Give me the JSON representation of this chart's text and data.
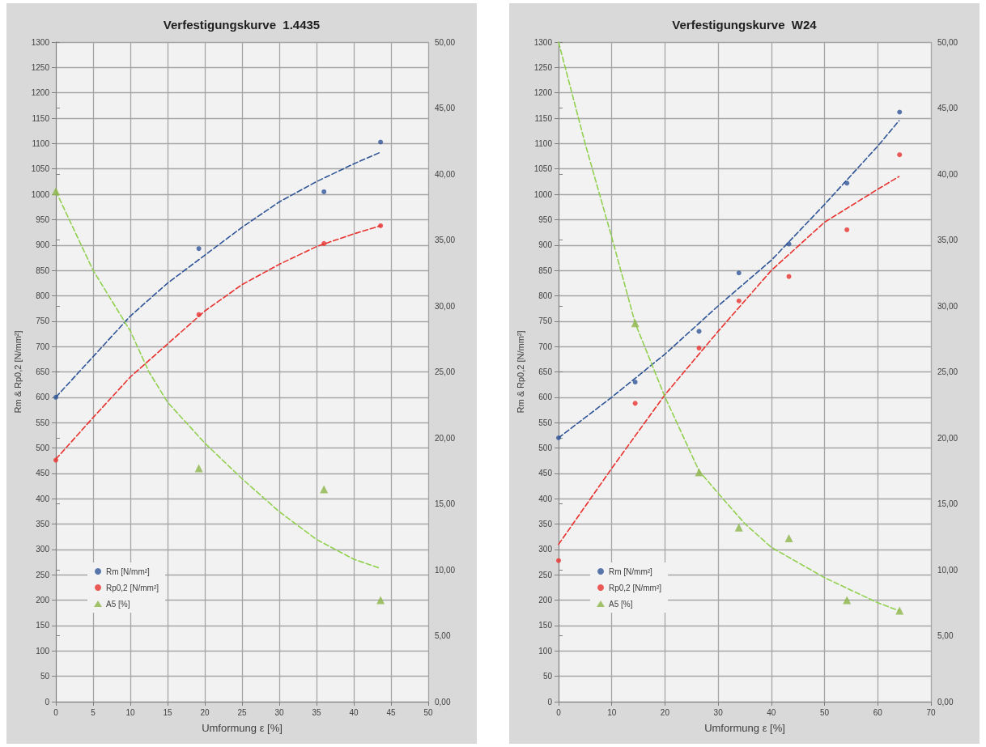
{
  "chart_data": [
    {
      "type": "scatter",
      "title": "Verfestigungskurve  1.4435",
      "xlabel": "Umformung ε [%]",
      "ylabel": "Rm & Rp0,2 [N/mm²]",
      "xlim": [
        0,
        50
      ],
      "xticks": [
        0,
        5,
        10,
        15,
        20,
        25,
        30,
        35,
        40,
        45,
        50
      ],
      "ylim": [
        0,
        1300
      ],
      "yticks": [
        0,
        50,
        100,
        150,
        200,
        250,
        300,
        350,
        400,
        450,
        500,
        550,
        600,
        650,
        700,
        750,
        800,
        850,
        900,
        950,
        1000,
        1050,
        1100,
        1150,
        1200,
        1250,
        1300
      ],
      "y2lim": [
        0,
        50
      ],
      "y2ticks": [
        {
          "value": 0,
          "label": "0,00"
        },
        {
          "value": 5,
          "label": "5,00"
        },
        {
          "value": 10,
          "label": "10,00"
        },
        {
          "value": 15,
          "label": "15,00"
        },
        {
          "value": 20,
          "label": "20,00"
        },
        {
          "value": 25,
          "label": "25,00"
        },
        {
          "value": 30,
          "label": "30,00"
        },
        {
          "value": 35,
          "label": "35,00"
        },
        {
          "value": 40,
          "label": "40,00"
        },
        {
          "value": 45,
          "label": "45,00"
        },
        {
          "value": 50,
          "label": "50,00"
        }
      ],
      "grid": true,
      "legend": "bottom left",
      "series": [
        {
          "type": "line",
          "color": "#2f5597",
          "line_style": "dashed",
          "marker": "none",
          "x": [
            0,
            5,
            10,
            15,
            20,
            25,
            30,
            35,
            40,
            43.6
          ],
          "values": [
            600,
            680,
            760,
            825,
            880,
            935,
            985,
            1025,
            1060,
            1083
          ]
        },
        {
          "type": "line",
          "color": "#e8322e",
          "line_style": "dashed",
          "marker": "none",
          "x": [
            0,
            5,
            10,
            15,
            20,
            25,
            30,
            35,
            40,
            43.6
          ],
          "values": [
            478,
            560,
            640,
            705,
            770,
            822,
            862,
            897,
            922,
            938
          ]
        },
        {
          "type": "line",
          "color": "#92d050",
          "line_style": "dashed",
          "marker": "none",
          "axis": "y2",
          "x": [
            0,
            5,
            10,
            12.5,
            15,
            20,
            25,
            30,
            35,
            40,
            43.6
          ],
          "values": [
            38.7,
            32.7,
            28.1,
            25,
            22.7,
            19.6,
            16.9,
            14.4,
            12.3,
            10.8,
            10.1
          ]
        },
        {
          "name": "Rm [N/mm²]",
          "color": "#2f5597",
          "marker": "circle",
          "x": [
            0,
            19.2,
            36,
            43.6
          ],
          "values": [
            600,
            893,
            1005,
            1103
          ]
        },
        {
          "name": "Rp0,2 [N/mm²]",
          "color": "#e8322e",
          "marker": "circle",
          "x": [
            0,
            19.2,
            36,
            43.6
          ],
          "values": [
            476,
            763,
            903,
            938
          ]
        },
        {
          "name": "A5 [%]",
          "color": "#8cb548",
          "marker": "triangle",
          "axis": "y2",
          "x": [
            0,
            19.2,
            36,
            43.6
          ],
          "values": [
            38.7,
            17.7,
            16.1,
            7.7
          ]
        }
      ]
    },
    {
      "type": "scatter",
      "title": "Verfestigungskurve  W24",
      "xlabel": "Umformung ε [%]",
      "ylabel": "Rm & Rp0,2 [N/mm²]",
      "xlim": [
        0,
        70
      ],
      "xticks": [
        0,
        10,
        20,
        30,
        40,
        50,
        60,
        70
      ],
      "ylim": [
        0,
        1300
      ],
      "yticks": [
        0,
        50,
        100,
        150,
        200,
        250,
        300,
        350,
        400,
        450,
        500,
        550,
        600,
        650,
        700,
        750,
        800,
        850,
        900,
        950,
        1000,
        1050,
        1100,
        1150,
        1200,
        1250,
        1300
      ],
      "y2lim": [
        0,
        50
      ],
      "y2ticks": [
        {
          "value": 0,
          "label": "0,00"
        },
        {
          "value": 5,
          "label": "5,00"
        },
        {
          "value": 10,
          "label": "10,00"
        },
        {
          "value": 15,
          "label": "15,00"
        },
        {
          "value": 20,
          "label": "20,00"
        },
        {
          "value": 25,
          "label": "25,00"
        },
        {
          "value": 30,
          "label": "30,00"
        },
        {
          "value": 35,
          "label": "35,00"
        },
        {
          "value": 40,
          "label": "40,00"
        },
        {
          "value": 45,
          "label": "45,00"
        },
        {
          "value": 50,
          "label": "50,00"
        }
      ],
      "grid": true,
      "legend": "bottom left",
      "series": [
        {
          "type": "line",
          "color": "#2f5597",
          "line_style": "dashed",
          "marker": "none",
          "x": [
            0,
            10,
            20,
            30,
            40,
            50,
            60,
            64
          ],
          "values": [
            520,
            600,
            685,
            780,
            870,
            980,
            1095,
            1145
          ]
        },
        {
          "type": "line",
          "color": "#e8322e",
          "line_style": "dashed",
          "marker": "none",
          "x": [
            0,
            10,
            20,
            30,
            40,
            50,
            60,
            64
          ],
          "values": [
            310,
            460,
            605,
            730,
            850,
            945,
            1010,
            1035
          ]
        },
        {
          "type": "line",
          "color": "#92d050",
          "line_style": "dashed",
          "marker": "none",
          "axis": "y2",
          "x": [
            0,
            5,
            10,
            14.4,
            20,
            26.4,
            30,
            35,
            40,
            50,
            60,
            64
          ],
          "values": [
            50,
            42.3,
            35.2,
            28.7,
            23.1,
            17.5,
            15.8,
            13.5,
            11.7,
            9.4,
            7.5,
            6.9
          ]
        },
        {
          "name": "Rm [N/mm²]",
          "color": "#2f5597",
          "marker": "circle",
          "x": [
            0,
            14.4,
            26.4,
            33.9,
            43.3,
            54.2,
            64.1
          ],
          "values": [
            520,
            630,
            730,
            845,
            902,
            1022,
            1162
          ]
        },
        {
          "name": "Rp0,2 [N/mm²]",
          "color": "#e8322e",
          "marker": "circle",
          "x": [
            0,
            14.4,
            26.4,
            33.9,
            43.3,
            54.2,
            64.1
          ],
          "values": [
            278,
            588,
            697,
            790,
            838,
            930,
            1078
          ]
        },
        {
          "name": "A5 [%]",
          "color": "#8cb548",
          "marker": "triangle",
          "axis": "y2",
          "x": [
            14.4,
            26.4,
            33.9,
            43.3,
            54.2,
            64.1
          ],
          "values": [
            28.7,
            17.4,
            13.2,
            12.4,
            7.7,
            6.9
          ]
        }
      ]
    }
  ]
}
